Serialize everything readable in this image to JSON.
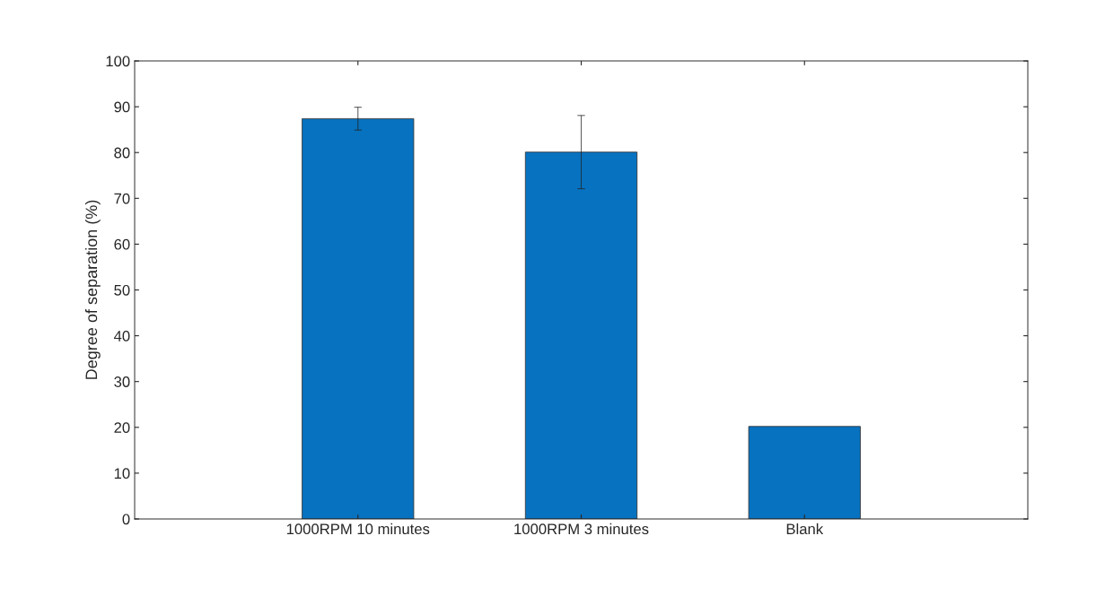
{
  "chart_data": {
    "type": "bar",
    "ylabel": "Degree of separation (%)",
    "categories": [
      "1000RPM 10 minutes",
      "1000RPM 3 minutes",
      "Blank"
    ],
    "values": [
      87.4,
      80.1,
      20.2
    ],
    "errors": [
      2.5,
      8.0,
      null
    ],
    "color": "#0772c0",
    "ylim": [
      0,
      100
    ],
    "yticks": [
      0,
      10,
      20,
      30,
      40,
      50,
      60,
      70,
      80,
      90,
      100
    ],
    "grid": false,
    "legend": false
  }
}
